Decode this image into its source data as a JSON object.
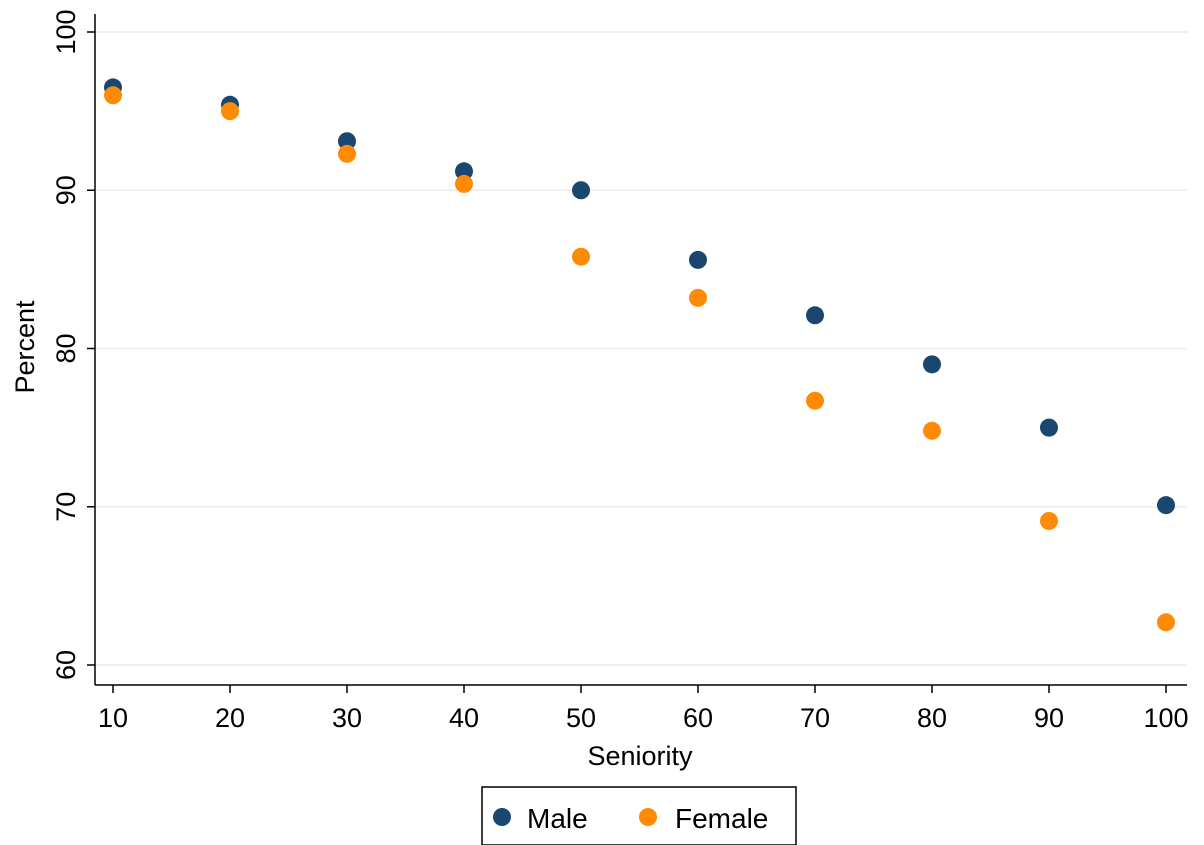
{
  "chart_data": {
    "type": "scatter",
    "title": "",
    "xlabel": "Seniority",
    "ylabel": "Percent",
    "xlim": [
      10,
      100
    ],
    "ylim": [
      60,
      100
    ],
    "x_ticks": [
      "10",
      "20",
      "30",
      "40",
      "50",
      "60",
      "70",
      "80",
      "90",
      "100"
    ],
    "y_ticks": [
      "60",
      "70",
      "80",
      "90",
      "100"
    ],
    "grid": true,
    "legend_position": "bottom",
    "x": [
      10,
      20,
      30,
      40,
      50,
      60,
      70,
      80,
      90,
      100
    ],
    "series": [
      {
        "name": "Male",
        "color": "#1a476f",
        "values": [
          96.5,
          95.4,
          93.1,
          91.2,
          90.0,
          85.6,
          82.1,
          79.0,
          75.0,
          70.1
        ]
      },
      {
        "name": "Female",
        "color": "#ff8a05",
        "values": [
          96.0,
          95.0,
          92.3,
          90.4,
          85.8,
          83.2,
          76.7,
          74.8,
          69.1,
          62.7
        ]
      }
    ]
  }
}
